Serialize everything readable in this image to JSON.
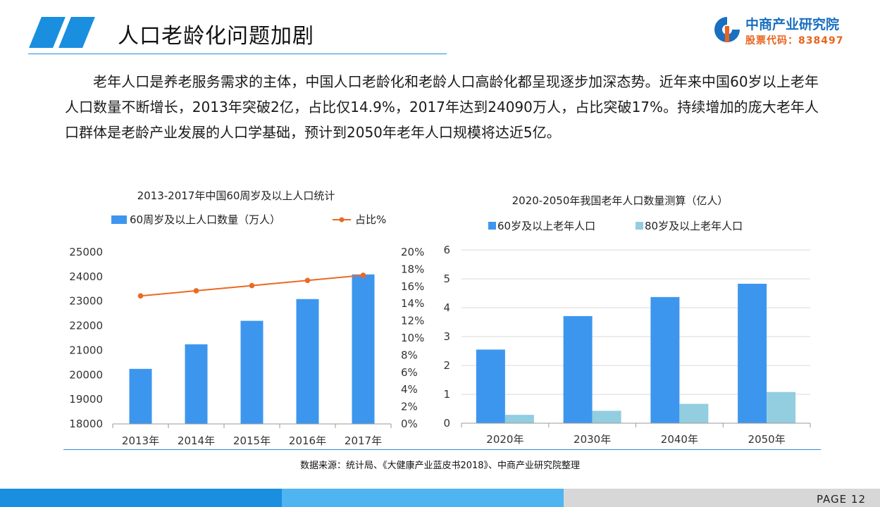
{
  "header": {
    "title": "人口老龄化问题加剧",
    "logo_name": "中商产业研究院",
    "logo_code": "股票代码：838497"
  },
  "paragraph": "老年人口是养老服务需求的主体，中国人口老龄化和老龄人口高龄化都呈现逐步加深态势。近年来中国60岁以上老年人口数量不断增长，2013年突破2亿，占比仅14.9%，2017年达到24090万人，占比突破17%。持续增加的庞大老年人口群体是老龄产业发展的人口学基础，预计到2050年老年人口规模将达近5亿。",
  "source": "数据来源：统计局、《大健康产业蓝皮书2018》、中商产业研究院整理",
  "footer": {
    "page": "PAGE  12"
  },
  "colors": {
    "accent": "#1a8fe0",
    "bar_blue": "#3d96ee",
    "bar_light": "#92cde0",
    "line_orange": "#ea6a23"
  },
  "chart_data": [
    {
      "type": "bar",
      "title": "2013-2017年中国60周岁及以上人口统计",
      "categories": [
        "2013年",
        "2014年",
        "2015年",
        "2016年",
        "2017年"
      ],
      "series": [
        {
          "name": "60周岁及以上人口数量（万人）",
          "type": "bar",
          "axis": "left",
          "values": [
            20243,
            21242,
            22200,
            23086,
            24090
          ]
        },
        {
          "name": "占比%",
          "type": "line",
          "axis": "right",
          "values": [
            14.9,
            15.5,
            16.1,
            16.7,
            17.3
          ]
        }
      ],
      "ylim": [
        18000,
        25000
      ],
      "yticks": [
        "18000",
        "19000",
        "20000",
        "21000",
        "22000",
        "23000",
        "24000",
        "25000"
      ],
      "y2lim": [
        0,
        20
      ],
      "y2ticks": [
        "0%",
        "2%",
        "4%",
        "6%",
        "8%",
        "10%",
        "12%",
        "14%",
        "16%",
        "18%",
        "20%"
      ],
      "legend": "top"
    },
    {
      "type": "bar",
      "title": "2020-2050年我国老年人口数量测算（亿人）",
      "categories": [
        "2020年",
        "2030年",
        "2040年",
        "2050年"
      ],
      "series": [
        {
          "name": "60岁及以上老年人口",
          "values": [
            2.55,
            3.71,
            4.37,
            4.83
          ]
        },
        {
          "name": "80岁及以上老年人口",
          "values": [
            0.29,
            0.43,
            0.67,
            1.08
          ]
        }
      ],
      "ylim": [
        0,
        6
      ],
      "yticks": [
        "0",
        "1",
        "2",
        "3",
        "4",
        "5",
        "6"
      ],
      "legend": "top",
      "grid": true
    }
  ]
}
